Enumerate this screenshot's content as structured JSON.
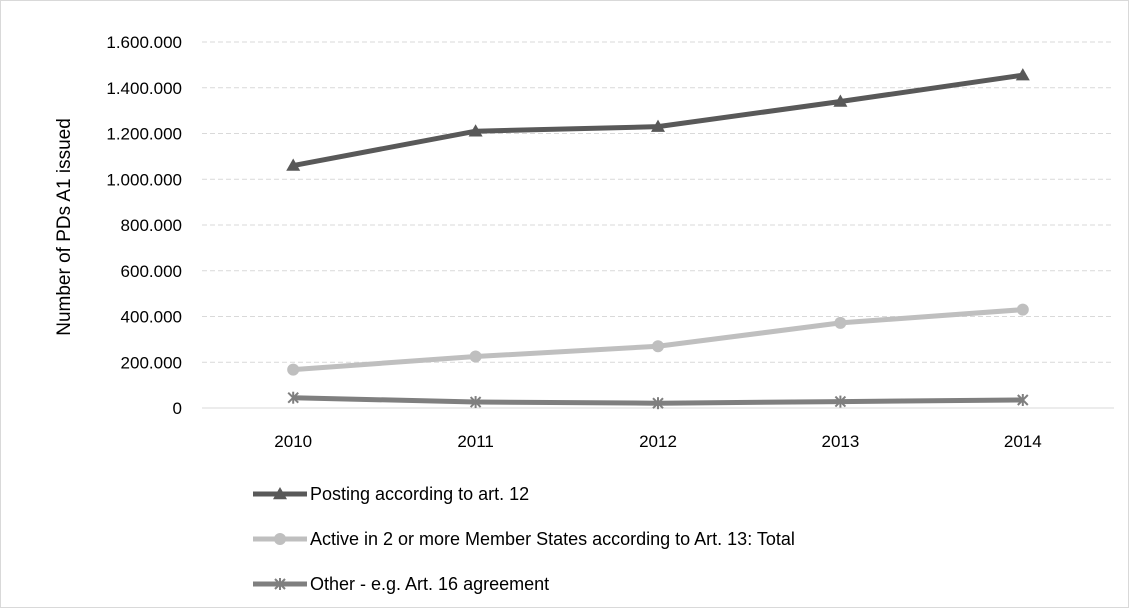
{
  "chart_data": {
    "type": "line",
    "title": "",
    "xlabel": "",
    "ylabel": "Number of PDs A1 issued",
    "categories": [
      "2010",
      "2011",
      "2012",
      "2013",
      "2014"
    ],
    "ylim": [
      0,
      1600000
    ],
    "yticks": [
      0,
      200000,
      400000,
      600000,
      800000,
      1000000,
      1200000,
      1400000,
      1600000
    ],
    "ytick_labels": [
      "0",
      "200.000",
      "400.000",
      "600.000",
      "800.000",
      "1.000.000",
      "1.200.000",
      "1.400.000",
      "1.600.000"
    ],
    "grid": true,
    "legend_position": "bottom-left",
    "series": [
      {
        "name": "Posting according to art. 12",
        "values": [
          1060000,
          1210000,
          1230000,
          1340000,
          1455000
        ],
        "color": "#595959",
        "marker": "triangle"
      },
      {
        "name": "Active in 2 or more Member States according to Art. 13: Total",
        "values": [
          168000,
          225000,
          270000,
          372000,
          430000
        ],
        "color": "#bfbfbf",
        "marker": "circle"
      },
      {
        "name": "Other - e.g. Art. 16 agreement",
        "values": [
          45000,
          26000,
          21000,
          28000,
          35000
        ],
        "color": "#7f7f7f",
        "marker": "star"
      }
    ]
  }
}
